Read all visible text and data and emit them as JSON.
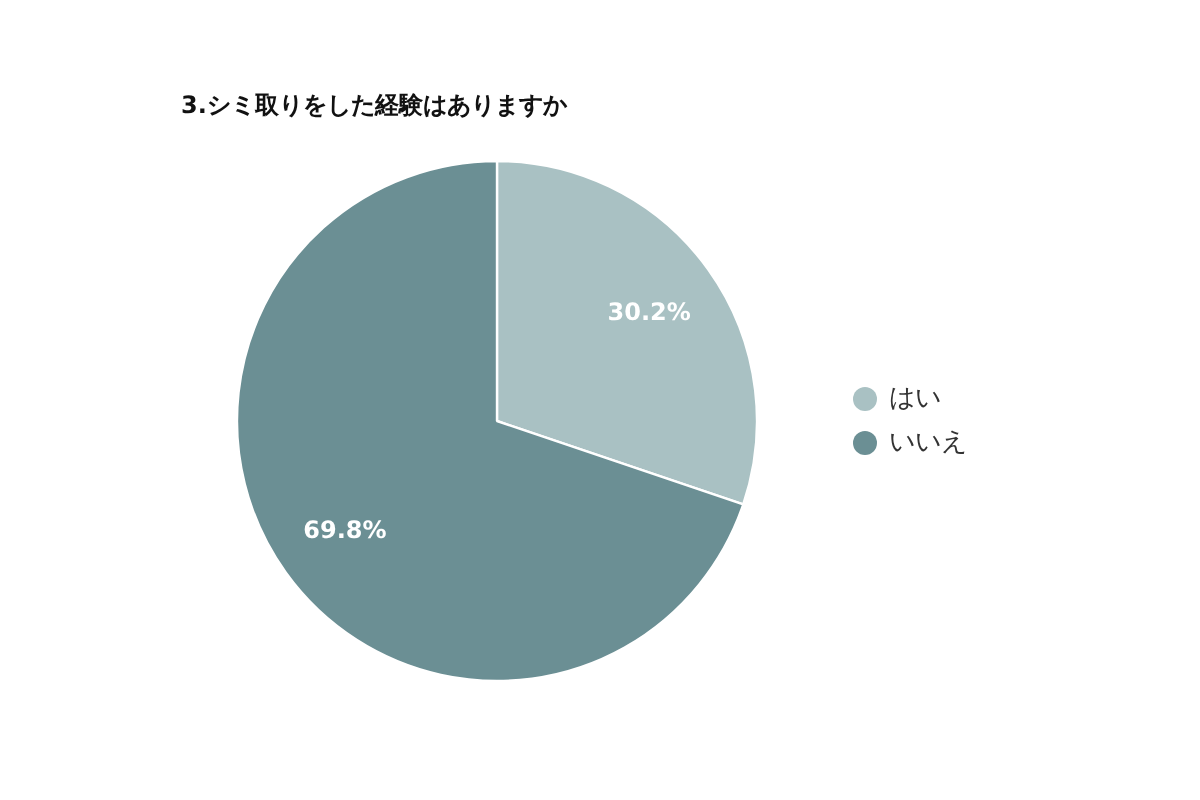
{
  "chart_data": {
    "type": "pie",
    "title": "3.シミ取りをした経験はありますか",
    "categories": [
      "はい",
      "いいえ"
    ],
    "values": [
      30.2,
      69.8
    ],
    "colors": [
      "#a9c1c3",
      "#6b8f94"
    ],
    "value_labels": [
      "30.2%",
      "69.8%"
    ],
    "legend": "right"
  }
}
